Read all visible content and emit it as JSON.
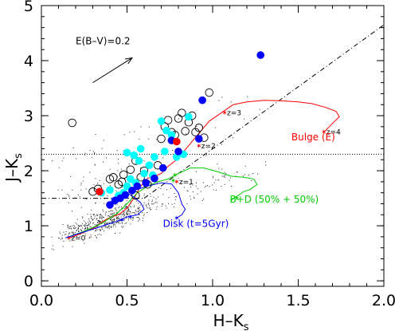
{
  "chart_data": {
    "type": "scatter",
    "xlabel": "H–K",
    "xlabel_sub": "s",
    "ylabel": "J–K",
    "ylabel_sub": "s",
    "xlim": [
      0,
      2.0
    ],
    "ylim": [
      -0.1,
      5.0
    ],
    "xticks": [
      0.0,
      0.5,
      1.0,
      1.5,
      2.0
    ],
    "xtick_labels": [
      "0.0",
      "0.5",
      "1.0",
      "1.5",
      "2.0"
    ],
    "yticks": [
      0,
      1,
      2,
      3,
      4,
      5
    ],
    "ytick_labels": [
      "0",
      "1",
      "2",
      "3",
      "4",
      "5"
    ],
    "reddening_label": "E(B–V)=0.2",
    "reddening_vector": {
      "x0": 0.3,
      "y0": 3.6,
      "x1": 0.53,
      "y1": 4.05
    },
    "colors": {
      "open": "#000000",
      "cyan": "#00ffff",
      "blue": "#0000ff",
      "red": "#ff0000",
      "bulge": "#ff0000",
      "mixed": "#00cc00",
      "disk": "#0000ff"
    },
    "series": [
      {
        "kind": "open",
        "marker": "open-circle",
        "points": [
          [
            0.18,
            2.87
          ],
          [
            0.3,
            1.62
          ],
          [
            0.33,
            1.67
          ],
          [
            0.4,
            1.85
          ],
          [
            0.42,
            1.88
          ],
          [
            0.45,
            1.75
          ],
          [
            0.47,
            1.8
          ],
          [
            0.48,
            1.93
          ],
          [
            0.52,
            2.02
          ],
          [
            0.55,
            2.18
          ],
          [
            0.58,
            1.88
          ],
          [
            0.6,
            2.0
          ],
          [
            0.62,
            1.75
          ],
          [
            0.68,
            2.1
          ],
          [
            0.7,
            2.58
          ],
          [
            0.72,
            2.8
          ],
          [
            0.74,
            2.92
          ],
          [
            0.76,
            2.7
          ],
          [
            0.78,
            2.65
          ],
          [
            0.8,
            2.95
          ],
          [
            0.82,
            3.05
          ],
          [
            0.84,
            2.72
          ],
          [
            0.86,
            2.88
          ],
          [
            0.88,
            3.0
          ],
          [
            0.9,
            2.7
          ],
          [
            0.92,
            2.78
          ],
          [
            0.95,
            2.6
          ],
          [
            0.98,
            3.42
          ],
          [
            0.55,
            1.55
          ]
        ]
      },
      {
        "kind": "cyan",
        "marker": "filled-circle",
        "points": [
          [
            0.35,
            1.6
          ],
          [
            0.4,
            1.65
          ],
          [
            0.45,
            1.55
          ],
          [
            0.48,
            1.6
          ],
          [
            0.5,
            1.72
          ],
          [
            0.52,
            1.85
          ],
          [
            0.5,
            2.33
          ],
          [
            0.54,
            2.28
          ],
          [
            0.57,
            2.18
          ],
          [
            0.58,
            2.4
          ],
          [
            0.63,
            2.1
          ],
          [
            0.65,
            1.92
          ],
          [
            0.66,
            2.25
          ],
          [
            0.7,
            2.9
          ],
          [
            0.72,
            2.35
          ],
          [
            0.73,
            2.73
          ],
          [
            0.76,
            2.65
          ],
          [
            0.79,
            2.25
          ],
          [
            0.83,
            2.3
          ],
          [
            0.86,
            2.98
          ],
          [
            0.55,
            1.78
          ],
          [
            0.6,
            1.95
          ]
        ]
      },
      {
        "kind": "blue",
        "marker": "filled-circle",
        "points": [
          [
            0.4,
            1.38
          ],
          [
            0.43,
            1.46
          ],
          [
            0.46,
            1.5
          ],
          [
            0.49,
            1.56
          ],
          [
            0.53,
            1.64
          ],
          [
            0.56,
            1.72
          ],
          [
            0.61,
            1.78
          ],
          [
            0.66,
            1.86
          ],
          [
            0.71,
            2.05
          ],
          [
            0.76,
            2.55
          ],
          [
            0.8,
            2.35
          ],
          [
            0.92,
            2.58
          ],
          [
            0.94,
            3.28
          ],
          [
            1.28,
            4.1
          ]
        ]
      },
      {
        "kind": "red",
        "marker": "filled-circle",
        "points": [
          [
            0.34,
            1.62
          ],
          [
            0.79,
            2.53
          ]
        ]
      }
    ],
    "tracks": [
      {
        "name": "Bulge (E)",
        "color": "bulge",
        "points": [
          [
            0.16,
            0.78
          ],
          [
            0.2,
            0.82
          ],
          [
            0.3,
            0.95
          ],
          [
            0.38,
            1.12
          ],
          [
            0.46,
            1.22
          ],
          [
            0.5,
            1.32
          ],
          [
            0.55,
            1.55
          ],
          [
            0.58,
            1.72
          ],
          [
            0.62,
            1.86
          ],
          [
            0.66,
            1.9
          ],
          [
            0.7,
            1.95
          ],
          [
            0.74,
            2.08
          ],
          [
            0.79,
            2.2
          ],
          [
            0.85,
            2.42
          ],
          [
            0.92,
            2.68
          ],
          [
            0.98,
            2.9
          ],
          [
            1.05,
            3.05
          ],
          [
            1.12,
            3.2
          ],
          [
            1.2,
            3.25
          ],
          [
            1.3,
            3.28
          ],
          [
            1.4,
            3.27
          ],
          [
            1.5,
            3.25
          ],
          [
            1.58,
            3.22
          ],
          [
            1.66,
            3.15
          ],
          [
            1.72,
            3.08
          ],
          [
            1.74,
            2.98
          ],
          [
            1.7,
            2.86
          ],
          [
            1.65,
            2.7
          ]
        ],
        "markers": [
          {
            "label": "z=0",
            "x": 0.16,
            "y": 0.78
          },
          {
            "label": "z=1",
            "x": 0.79,
            "y": 1.8
          },
          {
            "label": "z=2",
            "x": 0.92,
            "y": 2.45
          },
          {
            "label": "z=3",
            "x": 1.07,
            "y": 3.05
          },
          {
            "label": "z=4",
            "x": 1.65,
            "y": 2.7
          }
        ]
      },
      {
        "name": "B+D (50% + 50%)",
        "color": "mixed",
        "points": [
          [
            0.16,
            0.8
          ],
          [
            0.25,
            0.9
          ],
          [
            0.35,
            1.04
          ],
          [
            0.44,
            1.22
          ],
          [
            0.5,
            1.4
          ],
          [
            0.56,
            1.6
          ],
          [
            0.62,
            1.72
          ],
          [
            0.68,
            1.8
          ],
          [
            0.74,
            1.85
          ],
          [
            0.8,
            1.95
          ],
          [
            0.87,
            2.05
          ],
          [
            0.95,
            2.05
          ],
          [
            1.03,
            1.98
          ],
          [
            1.11,
            1.9
          ],
          [
            1.18,
            1.88
          ],
          [
            1.24,
            1.85
          ],
          [
            1.26,
            1.75
          ],
          [
            1.22,
            1.66
          ],
          [
            1.18,
            1.62
          ],
          [
            1.15,
            1.55
          ],
          [
            1.12,
            1.5
          ],
          [
            1.11,
            1.46
          ]
        ],
        "markers": [
          {
            "label": "",
            "x": 0.78,
            "y": 1.92
          },
          {
            "label": "",
            "x": 0.77,
            "y": 1.82
          },
          {
            "label": "",
            "x": 1.14,
            "y": 1.5
          }
        ]
      },
      {
        "name": "Disk (t=5Gyr)",
        "color": "disk",
        "points": [
          [
            0.14,
            0.78
          ],
          [
            0.2,
            0.84
          ],
          [
            0.28,
            0.92
          ],
          [
            0.36,
            1.0
          ],
          [
            0.44,
            1.08
          ],
          [
            0.5,
            1.16
          ],
          [
            0.56,
            1.2
          ],
          [
            0.6,
            1.3
          ],
          [
            0.58,
            1.42
          ],
          [
            0.54,
            1.52
          ],
          [
            0.5,
            1.6
          ],
          [
            0.56,
            1.66
          ],
          [
            0.62,
            1.72
          ],
          [
            0.7,
            1.78
          ],
          [
            0.76,
            1.76
          ],
          [
            0.8,
            1.6
          ],
          [
            0.82,
            1.4
          ],
          [
            0.84,
            1.3
          ],
          [
            0.82,
            1.2
          ],
          [
            0.79,
            1.14
          ]
        ],
        "markers": [
          {
            "label": "",
            "x": 0.47,
            "y": 1.1
          },
          {
            "label": "",
            "x": 0.52,
            "y": 1.16
          },
          {
            "label": "",
            "x": 0.79,
            "y": 1.14
          }
        ]
      }
    ],
    "reference_lines": {
      "horizontal_dotted": 2.3,
      "horizontal_dashdot": 1.5,
      "diagonal_dashdot": [
        [
          0.6,
          1.5
        ],
        [
          2.0,
          4.65
        ]
      ]
    },
    "field_points_seed": 7,
    "field_points_count": 700
  }
}
